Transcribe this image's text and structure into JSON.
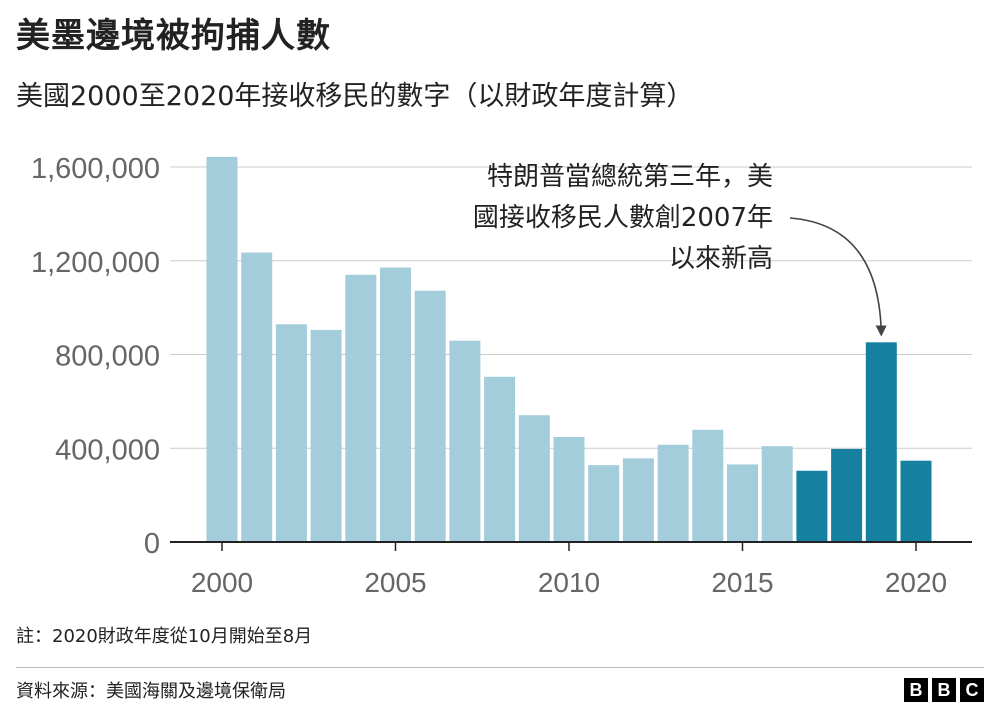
{
  "header": {
    "title": "美墨邊境被拘捕人數",
    "subtitle": "美國2000至2020年接收移民的數字（以財政年度計算）"
  },
  "footer": {
    "note": "註：2020財政年度從10月開始至8月",
    "source": "資料來源：美國海關及邊境保衛局",
    "logo_letters": [
      "B",
      "B",
      "C"
    ]
  },
  "colors": {
    "light_bar": "#a4cddb",
    "highlight_bar": "#1580a0",
    "grid": "#cccccc",
    "axis": "#222222",
    "tick_text": "#666666"
  },
  "chart_data": {
    "type": "bar",
    "title": "美墨邊境被拘捕人數",
    "subtitle": "美國2000至2020年接收移民的數字（以財政年度計算）",
    "xlabel": "",
    "ylabel": "",
    "x": [
      2000,
      2001,
      2002,
      2003,
      2004,
      2005,
      2006,
      2007,
      2008,
      2009,
      2010,
      2011,
      2012,
      2013,
      2014,
      2015,
      2016,
      2017,
      2018,
      2019,
      2020
    ],
    "values": [
      1643000,
      1235000,
      929000,
      905000,
      1140000,
      1171000,
      1072000,
      859000,
      705000,
      541000,
      448000,
      328000,
      357000,
      415000,
      479000,
      331000,
      409000,
      304000,
      397000,
      852000,
      347000
    ],
    "highlight": [
      false,
      false,
      false,
      false,
      false,
      false,
      false,
      false,
      false,
      false,
      false,
      false,
      false,
      false,
      false,
      false,
      false,
      true,
      true,
      true,
      true
    ],
    "xticks": [
      2000,
      2005,
      2010,
      2015,
      2020
    ],
    "ylim": [
      0,
      1600000
    ],
    "yticks": [
      0,
      400000,
      800000,
      1200000,
      1600000
    ],
    "ytick_labels": [
      "0",
      "400,000",
      "800,000",
      "1,200,000",
      "1,600,000"
    ],
    "grid": true,
    "annotation": {
      "lines": [
        "特朗普當總統第三年，美",
        "國接收移民人數創2007年",
        "以來新高"
      ],
      "target_year": 2019
    }
  }
}
